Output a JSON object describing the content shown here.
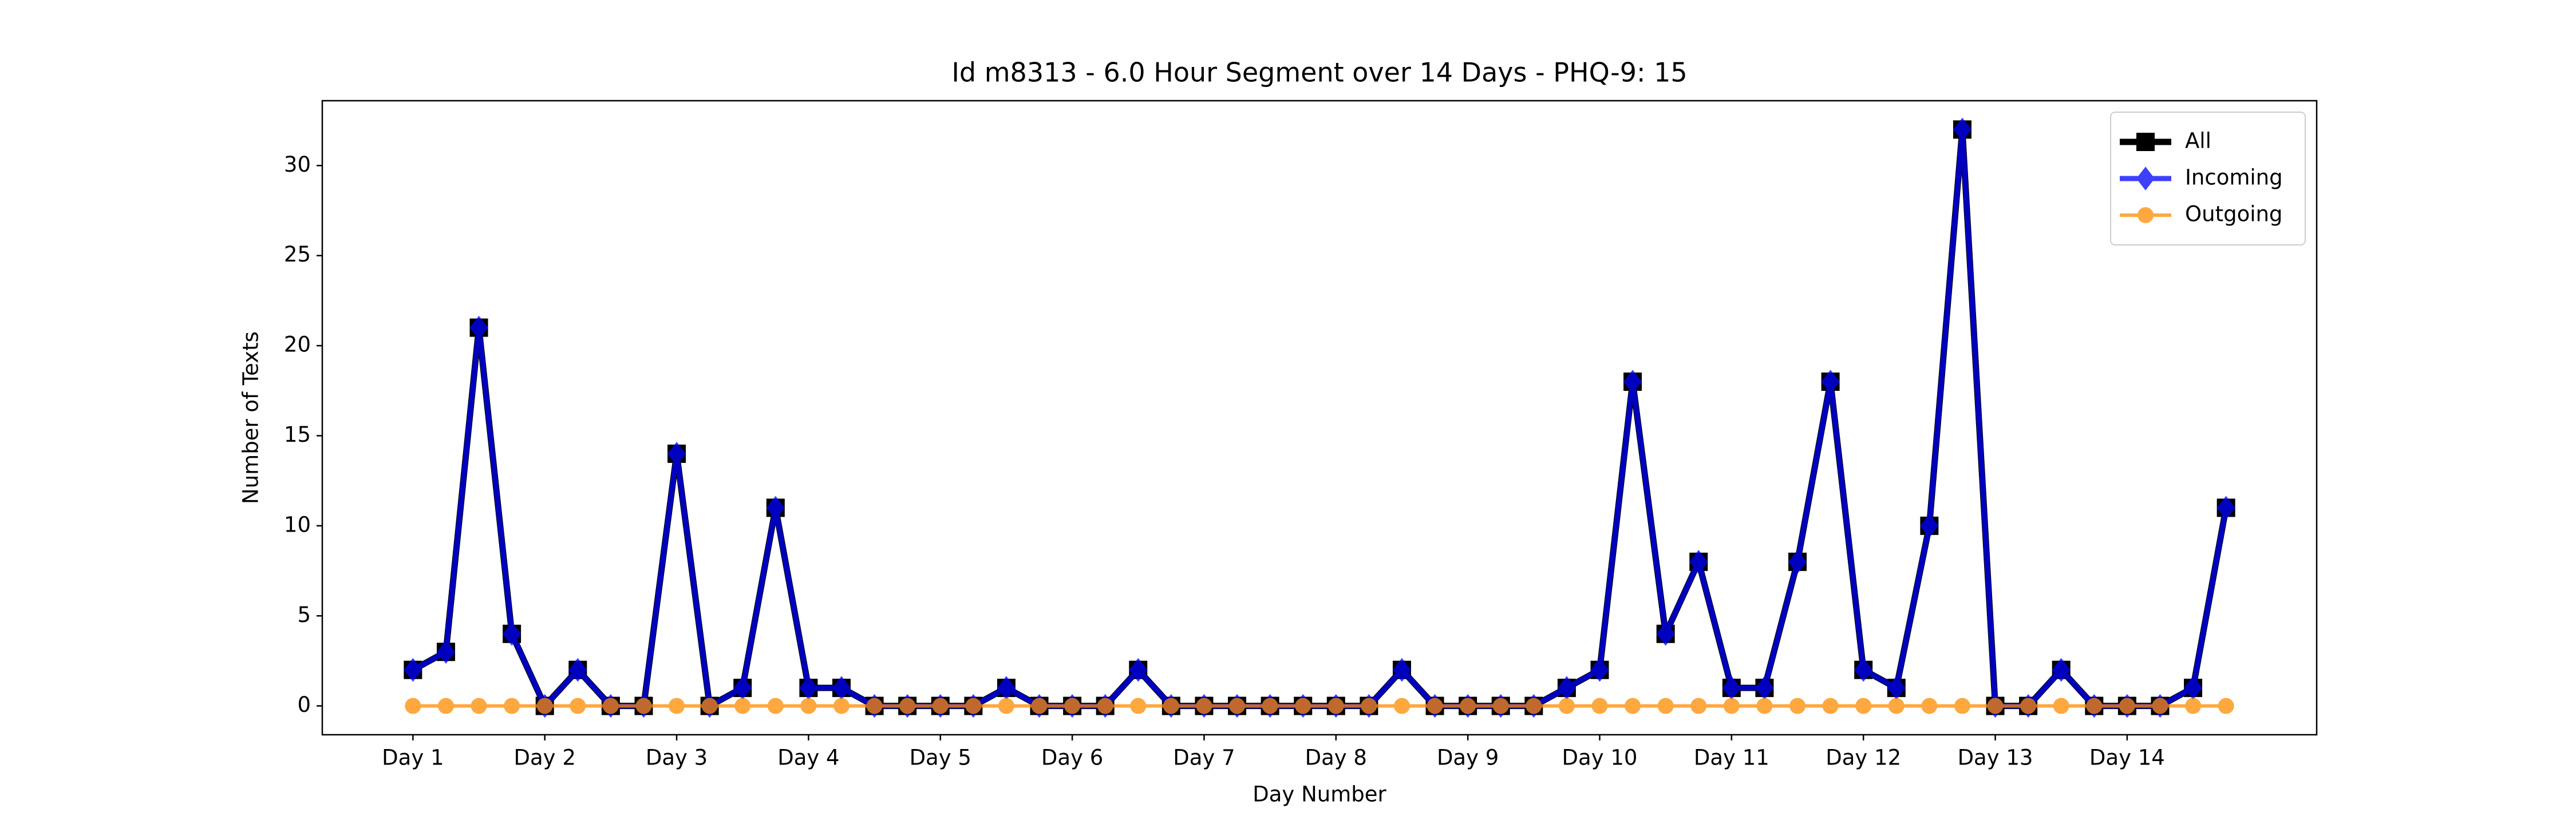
{
  "chart_data": {
    "type": "line",
    "title": "Id m8313 - 6.0 Hour Segment over 14 Days - PHQ-9: 15",
    "x_label": "Day Number",
    "y_label": "Number of Texts",
    "categories": [
      "Day 1",
      null,
      null,
      null,
      "Day 2",
      null,
      null,
      null,
      "Day 3",
      null,
      null,
      null,
      "Day 4",
      null,
      null,
      null,
      "Day 5",
      null,
      null,
      null,
      "Day 6",
      null,
      null,
      null,
      "Day 7",
      null,
      null,
      null,
      "Day 8",
      null,
      null,
      null,
      "Day 9",
      null,
      null,
      null,
      "Day 10",
      null,
      null,
      null,
      "Day 11",
      null,
      null,
      null,
      "Day 12",
      null,
      null,
      null,
      "Day 13",
      null,
      null,
      null,
      "Day 14",
      null,
      null,
      null
    ],
    "series": [
      {
        "name": "All",
        "color": "#000000",
        "marker": "square",
        "values": [
          2,
          3,
          21,
          4,
          0,
          2,
          0,
          0,
          14,
          0,
          1,
          11,
          1,
          1,
          0,
          0,
          0,
          0,
          1,
          0,
          0,
          0,
          2,
          0,
          0,
          0,
          0,
          0,
          0,
          0,
          2,
          0,
          0,
          0,
          0,
          1,
          2,
          18,
          4,
          8,
          1,
          1,
          8,
          18,
          2,
          1,
          10,
          32,
          0,
          0,
          2,
          0,
          0,
          0,
          1,
          11
        ]
      },
      {
        "name": "Incoming",
        "color": "#0000ff",
        "marker": "diamond",
        "values": [
          2,
          3,
          21,
          4,
          0,
          2,
          0,
          0,
          14,
          0,
          1,
          11,
          1,
          1,
          0,
          0,
          0,
          0,
          1,
          0,
          0,
          0,
          2,
          0,
          0,
          0,
          0,
          0,
          0,
          0,
          2,
          0,
          0,
          0,
          0,
          1,
          2,
          18,
          4,
          8,
          1,
          1,
          8,
          18,
          2,
          1,
          10,
          32,
          0,
          0,
          2,
          0,
          0,
          0,
          1,
          11
        ]
      },
      {
        "name": "Outgoing",
        "color": "#ff8c00",
        "marker": "circle",
        "values": [
          0,
          0,
          0,
          0,
          0,
          0,
          0,
          0,
          0,
          0,
          0,
          0,
          0,
          0,
          0,
          0,
          0,
          0,
          0,
          0,
          0,
          0,
          0,
          0,
          0,
          0,
          0,
          0,
          0,
          0,
          0,
          0,
          0,
          0,
          0,
          0,
          0,
          0,
          0,
          0,
          0,
          0,
          0,
          0,
          0,
          0,
          0,
          0,
          0,
          0,
          0,
          0,
          0,
          0,
          0,
          0
        ]
      }
    ],
    "ylim": [
      -1.6,
      33.6
    ],
    "yticks": [
      0,
      5,
      10,
      15,
      20,
      25,
      30
    ],
    "grid": false,
    "legend": "upper right"
  }
}
